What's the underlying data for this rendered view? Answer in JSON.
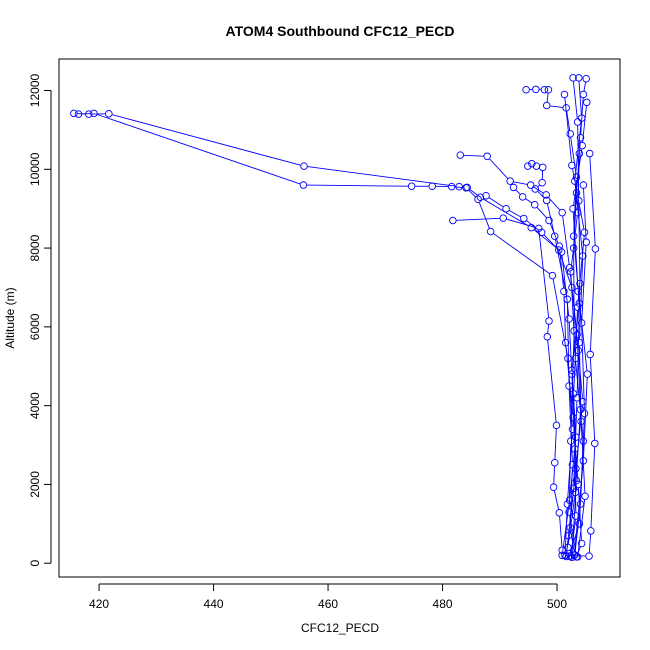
{
  "chart_data": {
    "type": "line",
    "title": "ATOM4 Southbound CFC12_PECD",
    "xlabel": "CFC12_PECD",
    "ylabel": "Altitude (m)",
    "xlim": [
      413,
      511
    ],
    "ylim": [
      -350,
      12800
    ],
    "xticks": [
      420,
      440,
      460,
      480,
      500
    ],
    "yticks": [
      0,
      2000,
      4000,
      6000,
      8000,
      10000,
      12000
    ],
    "grid": false,
    "legend": "none",
    "marker": "open-circle",
    "series_color": "#0000ff",
    "series": [
      {
        "points": [
          [
            415.6,
            11420
          ],
          [
            418.2,
            11400
          ],
          [
            421.7,
            11410
          ],
          [
            455.8,
            10080
          ],
          [
            482.9,
            9560
          ],
          [
            484.3,
            9540
          ],
          [
            486.6,
            9290
          ],
          [
            495.5,
            8520
          ],
          [
            500.8,
            7900
          ],
          [
            502.1,
            6200
          ],
          [
            502.6,
            4800
          ],
          [
            503.1,
            2900
          ],
          [
            503.3,
            1200
          ],
          [
            502.4,
            180
          ],
          [
            503.6,
            160
          ],
          [
            504.9,
            1700
          ],
          [
            504.2,
            3600
          ],
          [
            503.9,
            5600
          ],
          [
            504.5,
            7800
          ],
          [
            503.1,
            9700
          ],
          [
            504.3,
            11300
          ],
          [
            503.8,
            12320
          ]
        ]
      },
      {
        "points": [
          [
            416.4,
            11400
          ],
          [
            419.1,
            11420
          ],
          [
            455.7,
            9600
          ],
          [
            474.6,
            9570
          ],
          [
            478.2,
            9570
          ],
          [
            481.6,
            9560
          ],
          [
            484.1,
            9530
          ],
          [
            486.2,
            9240
          ],
          [
            488.4,
            8420
          ],
          [
            499.2,
            7300
          ],
          [
            501.9,
            5200
          ],
          [
            502.7,
            3400
          ],
          [
            501.8,
            1500
          ],
          [
            501.4,
            200
          ],
          [
            502.6,
            150
          ],
          [
            503.4,
            2100
          ],
          [
            502.9,
            4300
          ],
          [
            503.6,
            6500
          ],
          [
            504.8,
            8400
          ],
          [
            502.6,
            10100
          ],
          [
            501.3,
            11900
          ]
        ]
      },
      {
        "points": [
          [
            483.1,
            10360
          ],
          [
            487.8,
            10330
          ],
          [
            491.8,
            9700
          ],
          [
            495.4,
            9600
          ],
          [
            498.1,
            9350
          ],
          [
            500.9,
            8900
          ],
          [
            502.2,
            7500
          ],
          [
            503.5,
            5800
          ],
          [
            504.1,
            3900
          ],
          [
            503.2,
            1800
          ],
          [
            501.9,
            400
          ],
          [
            503.0,
            200
          ],
          [
            504.6,
            2600
          ],
          [
            505.3,
            4800
          ],
          [
            503.7,
            6900
          ],
          [
            502.8,
            9000
          ],
          [
            504.4,
            10600
          ],
          [
            505.2,
            11700
          ]
        ]
      },
      {
        "points": [
          [
            481.8,
            8700
          ],
          [
            490.6,
            8760
          ],
          [
            496.8,
            8500
          ],
          [
            498.6,
            6150
          ],
          [
            498.3,
            5750
          ],
          [
            499.9,
            3500
          ],
          [
            499.6,
            2550
          ],
          [
            499.4,
            1930
          ],
          [
            500.4,
            1280
          ],
          [
            500.9,
            330
          ],
          [
            502.1,
            180
          ],
          [
            503.9,
            1000
          ],
          [
            504.6,
            3100
          ],
          [
            503.2,
            5200
          ],
          [
            502.4,
            7400
          ],
          [
            503.6,
            8900
          ],
          [
            503.9,
            10400
          ]
        ]
      },
      {
        "points": [
          [
            494.6,
            12020
          ],
          [
            496.3,
            12030
          ],
          [
            497.8,
            12020
          ],
          [
            498.5,
            12020
          ],
          [
            498.2,
            11620
          ],
          [
            501.6,
            11560
          ],
          [
            502.3,
            10900
          ],
          [
            503.4,
            9800
          ],
          [
            502.9,
            8300
          ],
          [
            503.9,
            6600
          ],
          [
            502.6,
            4900
          ],
          [
            503.3,
            3200
          ],
          [
            502.2,
            1600
          ],
          [
            500.9,
            200
          ],
          [
            505.6,
            180
          ],
          [
            505.9,
            820
          ],
          [
            506.6,
            3040
          ],
          [
            505.8,
            5300
          ],
          [
            506.7,
            7980
          ],
          [
            505.7,
            10400
          ]
        ]
      },
      {
        "points": [
          [
            494.9,
            10080
          ],
          [
            495.6,
            10140
          ],
          [
            496.4,
            10080
          ],
          [
            497.5,
            10050
          ],
          [
            497.4,
            9660
          ],
          [
            496.2,
            9500
          ],
          [
            498.2,
            9210
          ],
          [
            499.6,
            8300
          ],
          [
            501.8,
            6700
          ],
          [
            502.1,
            4500
          ],
          [
            502.7,
            2500
          ],
          [
            502.3,
            900
          ],
          [
            503.1,
            210
          ],
          [
            504.1,
            1500
          ],
          [
            504.8,
            3800
          ],
          [
            504.3,
            6100
          ],
          [
            505.1,
            8150
          ],
          [
            504.6,
            9600
          ]
        ]
      },
      {
        "points": [
          [
            492.4,
            9540
          ],
          [
            494.0,
            9300
          ],
          [
            496.1,
            9100
          ],
          [
            498.6,
            8700
          ],
          [
            500.4,
            8050
          ],
          [
            501.2,
            6900
          ],
          [
            501.5,
            5600
          ],
          [
            502.8,
            3700
          ],
          [
            503.7,
            2000
          ],
          [
            504.3,
            500
          ],
          [
            503.4,
            160
          ],
          [
            502.1,
            1300
          ],
          [
            502.4,
            3100
          ],
          [
            503.0,
            5900
          ],
          [
            502.9,
            8000
          ],
          [
            503.4,
            9400
          ],
          [
            504.1,
            10800
          ],
          [
            504.6,
            11900
          ],
          [
            505.1,
            12300
          ]
        ]
      },
      {
        "points": [
          [
            487.6,
            9330
          ],
          [
            491.1,
            9000
          ],
          [
            494.2,
            8750
          ],
          [
            497.3,
            8400
          ],
          [
            500.3,
            7950
          ],
          [
            502.6,
            7000
          ],
          [
            503.7,
            5400
          ],
          [
            504.5,
            4100
          ],
          [
            503.3,
            2400
          ],
          [
            502.0,
            700
          ],
          [
            501.6,
            170
          ],
          [
            502.9,
            1900
          ],
          [
            503.5,
            4200
          ],
          [
            504.0,
            7100
          ],
          [
            503.8,
            9200
          ],
          [
            503.6,
            11200
          ],
          [
            502.8,
            12320
          ]
        ]
      }
    ]
  }
}
